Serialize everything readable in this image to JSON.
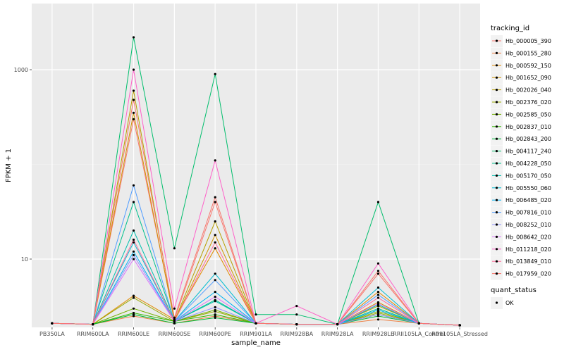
{
  "chart_data": {
    "type": "line",
    "xlabel": "sample_name",
    "ylabel": "FPKM + 1",
    "y_scale": "log10",
    "ylim": [
      1.9,
      5000
    ],
    "y_ticks": [
      10,
      1000
    ],
    "grid": true,
    "legend_position": "right",
    "categories": [
      "PB350LA",
      "RRIM600LA",
      "RRIM600LE",
      "RRIM600SE",
      "RRIM600PE",
      "RRIM901LA",
      "RRIM928BA",
      "RRIM928LA",
      "RRIM928LE",
      "RRII105LA_Control",
      "RRII105LA_Stressed"
    ],
    "series": [
      {
        "name": "Hb_000005_390",
        "color": "#F8766D",
        "values": [
          2.1,
          2.05,
          300,
          2.3,
          40,
          2.1,
          2.05,
          2.05,
          7,
          2.1,
          2.0
        ]
      },
      {
        "name": "Hb_000155_280",
        "color": "#EE8043",
        "values": [
          2.1,
          2.05,
          2.5,
          2.1,
          2.5,
          2.1,
          2.05,
          2.05,
          2.3,
          2.1,
          2.0
        ]
      },
      {
        "name": "Hb_000592_150",
        "color": "#E18A00",
        "values": [
          2.1,
          2.05,
          4.1,
          2.3,
          13,
          2.1,
          2.05,
          2.05,
          4.5,
          2.1,
          2.0
        ]
      },
      {
        "name": "Hb_001652_090",
        "color": "#D09400",
        "values": [
          2.1,
          2.05,
          350,
          2.2,
          18,
          2.1,
          2.05,
          2.05,
          3.5,
          2.1,
          2.0
        ]
      },
      {
        "name": "Hb_002026_040",
        "color": "#B79F00",
        "values": [
          2.1,
          2.05,
          600,
          2.2,
          25,
          2.1,
          2.05,
          2.05,
          3.2,
          2.1,
          2.0
        ]
      },
      {
        "name": "Hb_002376_020",
        "color": "#9AA900",
        "values": [
          2.1,
          2.05,
          3.9,
          2.2,
          2.8,
          2.1,
          2.05,
          2.05,
          2.7,
          2.1,
          2.0
        ]
      },
      {
        "name": "Hb_002585_050",
        "color": "#72B000",
        "values": [
          2.1,
          2.05,
          3.0,
          2.2,
          2.9,
          2.1,
          2.05,
          2.05,
          2.8,
          2.1,
          2.0
        ]
      },
      {
        "name": "Hb_002837_010",
        "color": "#33B700",
        "values": [
          2.1,
          2.05,
          2.7,
          2.2,
          2.6,
          2.1,
          2.05,
          2.05,
          2.6,
          2.1,
          2.0
        ]
      },
      {
        "name": "Hb_002843_200",
        "color": "#00BA38",
        "values": [
          2.1,
          2.05,
          2.6,
          2.1,
          2.4,
          2.1,
          2.05,
          2.05,
          2.5,
          2.1,
          2.0
        ]
      },
      {
        "name": "Hb_004117_240",
        "color": "#00BE6C",
        "values": [
          2.1,
          2.05,
          2200,
          13,
          900,
          2.6,
          2.6,
          2.05,
          40,
          2.1,
          2.0
        ]
      },
      {
        "name": "Hb_004228_050",
        "color": "#00C08E",
        "values": [
          2.1,
          2.05,
          40,
          2.2,
          3.7,
          2.1,
          2.05,
          2.05,
          3.0,
          2.1,
          2.0
        ]
      },
      {
        "name": "Hb_005170_050",
        "color": "#00BFAF",
        "values": [
          2.1,
          2.05,
          20,
          2.2,
          3.6,
          2.1,
          2.05,
          2.05,
          3.3,
          2.1,
          2.0
        ]
      },
      {
        "name": "Hb_005550_060",
        "color": "#00BCD2",
        "values": [
          2.1,
          2.05,
          15,
          2.2,
          7,
          2.1,
          2.05,
          2.05,
          5,
          2.1,
          2.0
        ]
      },
      {
        "name": "Hb_006485_020",
        "color": "#00B2F3",
        "values": [
          2.1,
          2.05,
          12,
          2.2,
          4.5,
          2.1,
          2.05,
          2.05,
          2.9,
          2.1,
          2.0
        ]
      },
      {
        "name": "Hb_007816_010",
        "color": "#529EFF",
        "values": [
          2.1,
          2.05,
          60,
          2.2,
          6,
          2.1,
          2.05,
          2.05,
          4.2,
          2.1,
          2.0
        ]
      },
      {
        "name": "Hb_008252_010",
        "color": "#8F91FF",
        "values": [
          2.1,
          2.05,
          11,
          2.2,
          3.1,
          2.1,
          2.05,
          2.05,
          2.6,
          2.1,
          2.0
        ]
      },
      {
        "name": "Hb_008642_020",
        "color": "#DB72FB",
        "values": [
          2.1,
          2.05,
          10,
          2.2,
          4.0,
          2.1,
          2.05,
          2.05,
          3.4,
          2.1,
          2.0
        ]
      },
      {
        "name": "Hb_011218_020",
        "color": "#FF61C9",
        "values": [
          2.1,
          2.05,
          1000,
          3.0,
          110,
          2.1,
          3.2,
          2.05,
          9,
          2.1,
          2.0
        ]
      },
      {
        "name": "Hb_013849_010",
        "color": "#FF6A98",
        "values": [
          2.1,
          2.05,
          16,
          2.2,
          15,
          2.1,
          2.05,
          2.05,
          3.9,
          2.1,
          2.0
        ]
      },
      {
        "name": "Hb_017959_020",
        "color": "#F8766D",
        "values": [
          2.1,
          2.05,
          480,
          2.4,
          45,
          2.1,
          2.05,
          2.05,
          7.5,
          2.1,
          2.0
        ]
      }
    ],
    "shape_legend": {
      "title": "quant_status",
      "entries": [
        "OK"
      ]
    },
    "legend_title": "tracking_id"
  }
}
